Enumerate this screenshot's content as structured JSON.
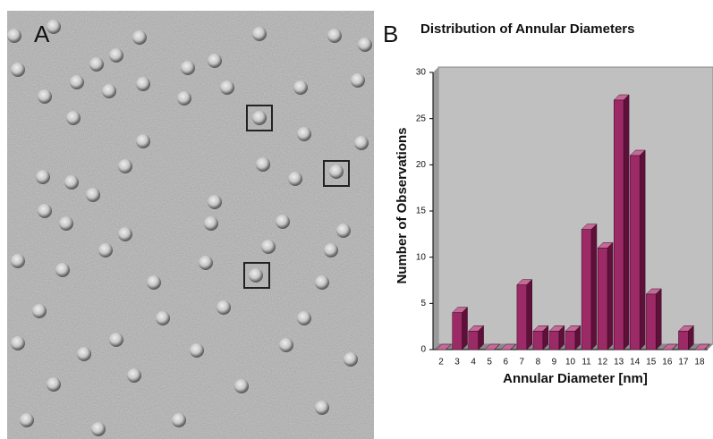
{
  "panel_labels": [
    "A",
    "B"
  ],
  "chart_data": {
    "type": "bar",
    "title": "Distribution of Annular Diameters",
    "x_label": "Annular Diameter [nm]",
    "y_label": "Number of Observations",
    "categories": [
      "2",
      "3",
      "4",
      "5",
      "6",
      "7",
      "8",
      "9",
      "10",
      "11",
      "12",
      "13",
      "14",
      "15",
      "16",
      "17",
      "18"
    ],
    "values": [
      0,
      4,
      2,
      0,
      0,
      7,
      2,
      2,
      2,
      13,
      11,
      27,
      21,
      6,
      0,
      2,
      0
    ],
    "color": "#9c2a66",
    "ylim": [
      0,
      30
    ],
    "yticks": [
      0,
      5,
      10,
      15,
      20,
      25,
      30
    ],
    "grid": false
  }
}
